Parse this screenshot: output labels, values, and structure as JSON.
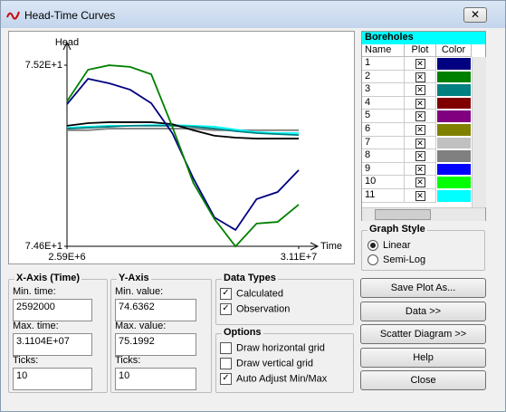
{
  "window": {
    "title": "Head-Time Curves"
  },
  "chart_data": {
    "type": "line",
    "x_label": "Time",
    "y_label": "Head",
    "x": [
      2592000,
      5184000,
      7776000,
      10368000,
      12960000,
      15552000,
      18144000,
      20736000,
      23328000,
      25920000,
      28512000,
      31104000
    ],
    "xlim": [
      2592000,
      31104000
    ],
    "xticks": [
      {
        "value": 2592000,
        "label": "2.59E+6"
      },
      {
        "value": 31104000,
        "label": "3.11E+7"
      }
    ],
    "ylim": [
      74.6362,
      75.1992
    ],
    "yticks": [
      {
        "value": 75.1992,
        "label": "7.52E+1"
      },
      {
        "value": 74.6362,
        "label": "7.46E+1"
      }
    ],
    "grid": false,
    "series": [
      {
        "color": "#808080",
        "values": [
          74.997,
          74.997,
          75.002,
          75.002,
          75.002,
          75.002,
          75.002,
          74.997,
          74.997,
          74.997,
          74.997,
          74.997
        ]
      },
      {
        "color": "#00ffff",
        "values": [
          75.005,
          75.008,
          75.011,
          75.011,
          75.013,
          75.013,
          75.011,
          75.008,
          74.999,
          74.991,
          74.988,
          74.988
        ]
      },
      {
        "color": "#008080",
        "values": [
          75.002,
          75.005,
          75.008,
          75.011,
          75.011,
          75.011,
          75.008,
          75.002,
          74.994,
          74.988,
          74.985,
          74.982
        ]
      },
      {
        "color": "#000000",
        "values": [
          75.011,
          75.019,
          75.022,
          75.022,
          75.022,
          75.016,
          74.997,
          74.98,
          74.974,
          74.971,
          74.971,
          74.971
        ]
      },
      {
        "color": "#000080",
        "values": [
          75.078,
          75.157,
          75.143,
          75.123,
          75.081,
          74.988,
          74.847,
          74.726,
          74.687,
          74.783,
          74.805,
          74.873
        ]
      },
      {
        "color": "#008000",
        "values": [
          75.087,
          75.185,
          75.199,
          75.194,
          75.171,
          75.008,
          74.833,
          74.721,
          74.636,
          74.707,
          74.712,
          74.766
        ]
      }
    ]
  },
  "boreholes": {
    "title": "Boreholes",
    "columns": [
      "Name",
      "Plot",
      "Color"
    ],
    "rows": [
      {
        "name": "1",
        "plot": true,
        "color": "#000080"
      },
      {
        "name": "2",
        "plot": true,
        "color": "#008000"
      },
      {
        "name": "3",
        "plot": true,
        "color": "#008080"
      },
      {
        "name": "4",
        "plot": true,
        "color": "#800000"
      },
      {
        "name": "5",
        "plot": true,
        "color": "#800080"
      },
      {
        "name": "6",
        "plot": true,
        "color": "#808000"
      },
      {
        "name": "7",
        "plot": true,
        "color": "#c0c0c0"
      },
      {
        "name": "8",
        "plot": true,
        "color": "#808080"
      },
      {
        "name": "9",
        "plot": true,
        "color": "#0000ff"
      },
      {
        "name": "10",
        "plot": true,
        "color": "#00ff00"
      },
      {
        "name": "11",
        "plot": true,
        "color": "#00ffff"
      }
    ]
  },
  "graph_style": {
    "title": "Graph Style",
    "options": [
      "Linear",
      "Semi-Log"
    ],
    "selected": 0
  },
  "x_axis": {
    "title": "X-Axis (Time)",
    "fields": [
      {
        "label": "Min. time:",
        "value": "2592000"
      },
      {
        "label": "Max. time:",
        "value": "3.1104E+07"
      },
      {
        "label": "Ticks:",
        "value": "10"
      }
    ]
  },
  "y_axis": {
    "title": "Y-Axis",
    "fields": [
      {
        "label": "Min. value:",
        "value": "74.6362"
      },
      {
        "label": "Max. value:",
        "value": "75.1992"
      },
      {
        "label": "Ticks:",
        "value": "10"
      }
    ]
  },
  "data_types": {
    "title": "Data Types",
    "options": [
      {
        "label": "Calculated",
        "checked": true
      },
      {
        "label": "Observation",
        "checked": true
      }
    ]
  },
  "options": {
    "title": "Options",
    "options": [
      {
        "label": "Draw horizontal grid",
        "checked": false
      },
      {
        "label": "Draw vertical grid",
        "checked": false
      },
      {
        "label": "Auto Adjust Min/Max",
        "checked": true
      }
    ]
  },
  "buttons": [
    "Save Plot As...",
    "Data >>",
    "Scatter Diagram >>",
    "Help",
    "Close"
  ]
}
